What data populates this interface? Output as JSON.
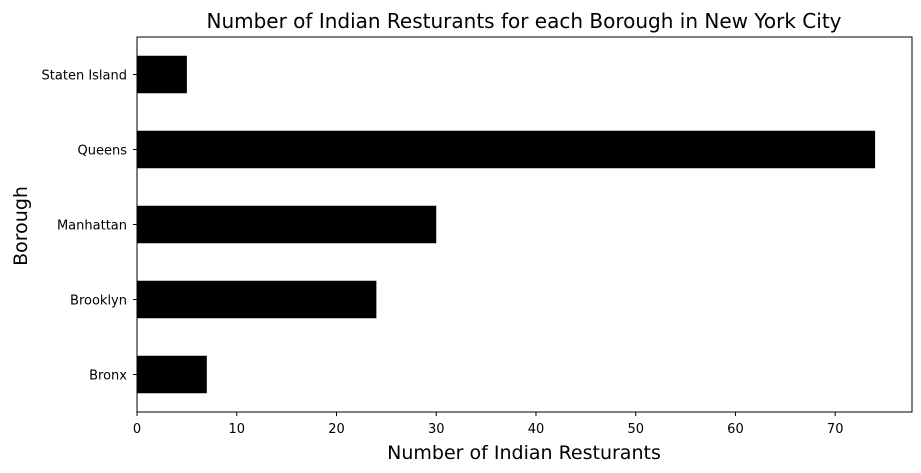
{
  "chart_data": {
    "type": "bar",
    "orientation": "horizontal",
    "title": "Number of Indian Resturants for each Borough in New York City",
    "xlabel": "Number of Indian Resturants",
    "ylabel": "Borough",
    "categories": [
      "Bronx",
      "Brooklyn",
      "Manhattan",
      "Queens",
      "Staten Island"
    ],
    "values": [
      7,
      24,
      30,
      74,
      5
    ],
    "xlim": [
      0,
      77.7
    ],
    "xticks": [
      0,
      10,
      20,
      30,
      40,
      50,
      60,
      70
    ],
    "grid": false,
    "legend": "none",
    "bar_color": "#000000"
  }
}
